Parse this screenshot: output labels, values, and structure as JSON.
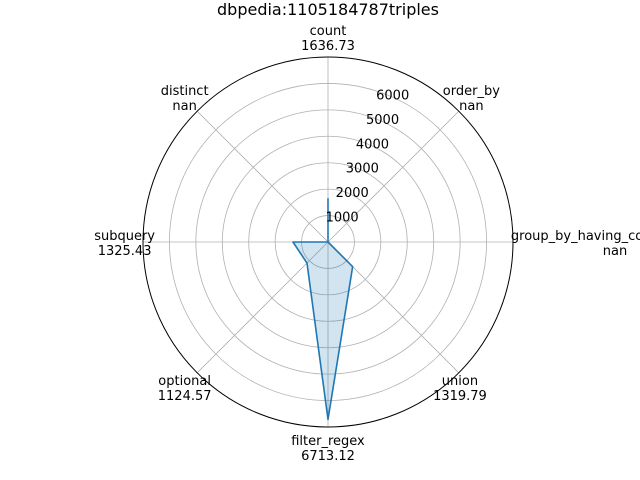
{
  "chart_data": {
    "type": "radar",
    "title": "dbpedia:1105184787triples",
    "axes": [
      {
        "name": "count",
        "value_label": "1636.73",
        "value": 1636.73
      },
      {
        "name": "order_by",
        "value_label": "nan",
        "value": null
      },
      {
        "name": "group_by_having_count_distinct",
        "value_label": "nan",
        "value": null
      },
      {
        "name": "union",
        "value_label": "1319.79",
        "value": 1319.79
      },
      {
        "name": "filter_regex",
        "value_label": "6713.12",
        "value": 6713.12
      },
      {
        "name": "optional",
        "value_label": "1124.57",
        "value": 1124.57
      },
      {
        "name": "subquery",
        "value_label": "1325.43",
        "value": 1325.43
      },
      {
        "name": "distinct",
        "value_label": "nan",
        "value": null
      }
    ],
    "radial_ticks": [
      "1000",
      "2000",
      "3000",
      "4000",
      "5000",
      "6000"
    ],
    "radial_tick_values": [
      1000,
      2000,
      3000,
      4000,
      5000,
      6000
    ],
    "rmax": 7000,
    "grid": true,
    "line_color": "#1f77b4",
    "fill_color": "#1f77b4"
  }
}
